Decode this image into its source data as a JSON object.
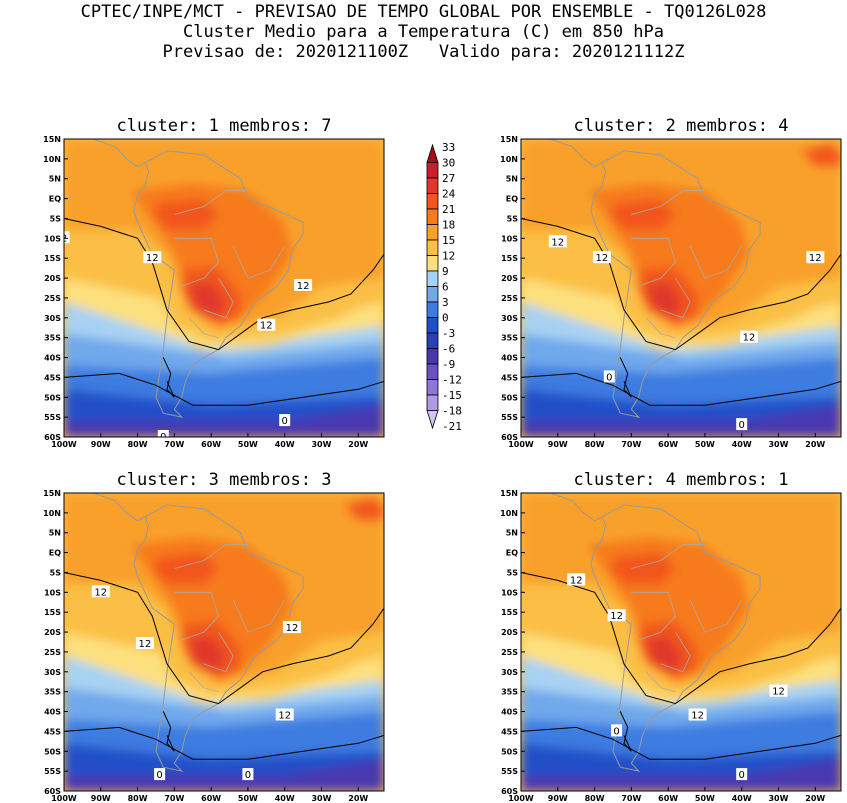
{
  "header": {
    "line1": "CPTEC/INPE/MCT - PREVISAO DE TEMPO GLOBAL POR ENSEMBLE - TQ0126L028",
    "line2": "Cluster Medio para a Temperatura (C) em 850 hPa",
    "line3": "Previsao de: 2020121100Z   Valido para: 2020121112Z"
  },
  "colorbar": {
    "levels": [
      33,
      30,
      27,
      24,
      21,
      18,
      15,
      12,
      9,
      6,
      3,
      0,
      -3,
      -6,
      -9,
      -12,
      -15,
      -18,
      -21
    ],
    "labels": [
      "33",
      "30",
      "27",
      "24",
      "21",
      "18",
      "15",
      "12",
      "9",
      "6",
      "3",
      "0",
      "-3",
      "-6",
      "-9",
      "-12",
      "-15",
      "-18",
      "-21"
    ],
    "colors": [
      "#a50f15",
      "#c8202a",
      "#e0382b",
      "#f2561d",
      "#f77a1c",
      "#f9a02a",
      "#fbbf45",
      "#fde07e",
      "#a8d2f3",
      "#70a8ec",
      "#3e7be0",
      "#2050c8",
      "#2a3fb8",
      "#4838b0",
      "#6a52c6",
      "#8e76d6",
      "#b09ae4",
      "#d2c4f0"
    ]
  },
  "panels": [
    {
      "title": "cluster: 1   membros: 7",
      "contour_labels": [
        "2",
        "12",
        "12",
        "12",
        "0",
        "0"
      ]
    },
    {
      "title": "cluster: 2   membros: 4",
      "contour_labels": [
        "12",
        "12",
        "12",
        "12",
        "0",
        "0"
      ]
    },
    {
      "title": "cluster: 3   membros: 3",
      "contour_labels": [
        "12",
        "12",
        "12",
        "12",
        "0",
        "0"
      ]
    },
    {
      "title": "cluster: 4   membros: 1",
      "contour_labels": [
        "12",
        "12",
        "12",
        "12",
        "0",
        "0"
      ]
    }
  ],
  "axes": {
    "y_labels": [
      "15N",
      "10N",
      "5N",
      "EQ",
      "5S",
      "10S",
      "15S",
      "20S",
      "25S",
      "30S",
      "35S",
      "40S",
      "45S",
      "50S",
      "55S",
      "60S"
    ],
    "x_labels": [
      "100W",
      "90W",
      "80W",
      "70W",
      "60W",
      "50W",
      "40W",
      "30W",
      "20W"
    ]
  }
}
